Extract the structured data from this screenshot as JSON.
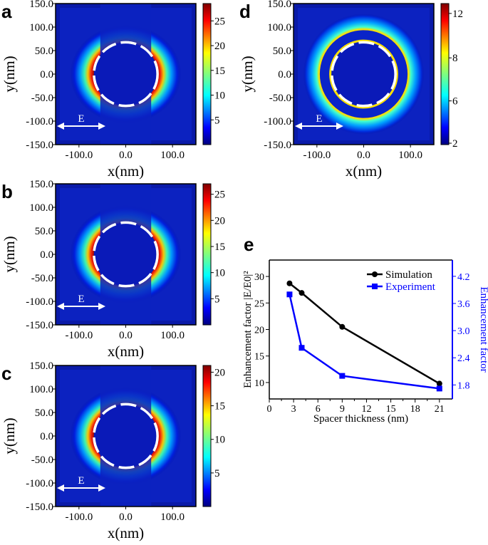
{
  "panels": [
    {
      "letter": "a",
      "xlabel": "x(nm)",
      "ylabel": "y(nm)",
      "yticks": [
        "150.0",
        "100.0",
        "50.0",
        "0.0",
        "-50.0",
        "-100.0",
        "-150.0"
      ],
      "xticks": [
        "-100.0",
        "0.0",
        "100.0"
      ],
      "colorbar": {
        "ticks": [
          "5",
          "10",
          "15",
          "20",
          "25"
        ],
        "min": 0,
        "max": 28.5
      },
      "field_label": "E",
      "style": "crescent",
      "peak_color": "#b00000"
    },
    {
      "letter": "b",
      "xlabel": "x(nm)",
      "ylabel": "y(nm)",
      "yticks": [
        "150.0",
        "100.0",
        "50.0",
        "0.0",
        "-50.0",
        "-100.0",
        "-150.0"
      ],
      "xticks": [
        "-100.0",
        "0.0",
        "100.0"
      ],
      "colorbar": {
        "ticks": [
          "5",
          "10",
          "15",
          "20",
          "25"
        ],
        "min": 0,
        "max": 27
      },
      "field_label": "E",
      "style": "crescent",
      "peak_color": "#c00000"
    },
    {
      "letter": "c",
      "xlabel": "x(nm)",
      "ylabel": "y(nm)",
      "yticks": [
        "150.0",
        "100.0",
        "50.0",
        "0.0",
        "-50.0",
        "-100.0",
        "-150.0"
      ],
      "xticks": [
        "-100.0",
        "0.0",
        "100.0"
      ],
      "colorbar": {
        "ticks": [
          "5",
          "10",
          "15",
          "20"
        ],
        "min": 0,
        "max": 21
      },
      "field_label": "E",
      "style": "crescent",
      "peak_color": "#d00000"
    },
    {
      "letter": "d",
      "xlabel": "x(nm)",
      "ylabel": "y(nm)",
      "yticks": [
        "150.0",
        "100.0",
        "50.0",
        "0.0",
        "-50.0",
        "-100.0",
        "-150.0"
      ],
      "xticks": [
        "-100.0",
        "0.0",
        "100.0"
      ],
      "colorbar": {
        "ticks": [
          "12",
          "8",
          "6",
          "2"
        ],
        "min": 2,
        "max": 12.8
      },
      "field_label": "E",
      "style": "shell",
      "peak_color": "#ffe000"
    }
  ],
  "chart_data": {
    "letter": "e",
    "type": "line",
    "xlabel": "Spacer thickness (nm)",
    "ylabel_left": "Enhancement factor |E/E0|²",
    "ylabel_right": "Enhancement factor",
    "xticks": [
      0,
      3,
      6,
      9,
      12,
      15,
      18,
      21
    ],
    "yticks_left": [
      10,
      15,
      20,
      25,
      30
    ],
    "yticks_right": [
      "1.8",
      "2.4",
      "3.0",
      "3.6",
      "4.2"
    ],
    "xlim": [
      0,
      22.6
    ],
    "ylim_left": [
      6.9,
      33.1
    ],
    "ylim_right": [
      1.49,
      4.56
    ],
    "legend": "top-right",
    "series": [
      {
        "name": "Simulation",
        "axis": "left",
        "color": "#000000",
        "marker": "circle",
        "x": [
          2.5,
          4,
          9,
          21
        ],
        "y": [
          28.7,
          26.9,
          20.5,
          9.8
        ]
      },
      {
        "name": "Experiment",
        "axis": "right",
        "color": "#0000ff",
        "marker": "square",
        "x": [
          2.5,
          4,
          9,
          21
        ],
        "y": [
          3.8,
          2.62,
          2.0,
          1.72
        ]
      }
    ]
  }
}
